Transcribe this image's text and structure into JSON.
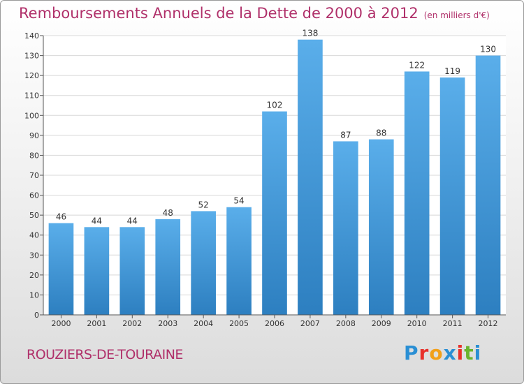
{
  "header": {
    "title": "Remboursements Annuels de la Dette de 2000 à 2012",
    "subtitle": "(en milliers d'€)"
  },
  "footer": {
    "commune": "ROUZIERS-DE-TOURAINE",
    "logo": {
      "letters": [
        "P",
        "r",
        "o",
        "x",
        "i",
        "t",
        "i"
      ],
      "colors": [
        "#2a8fd4",
        "#e8312b",
        "#f2a01a",
        "#2a8fd4",
        "#e8312b",
        "#6ab42d",
        "#2a8fd4"
      ]
    }
  },
  "chart_data": {
    "type": "bar",
    "categories": [
      "2000",
      "2001",
      "2002",
      "2003",
      "2004",
      "2005",
      "2006",
      "2007",
      "2008",
      "2009",
      "2010",
      "2011",
      "2012"
    ],
    "values": [
      46,
      44,
      44,
      48,
      52,
      54,
      102,
      138,
      87,
      88,
      122,
      119,
      130
    ],
    "value_labels": [
      "46",
      "44",
      "44",
      "48",
      "52",
      "54",
      "102",
      "138",
      "87",
      "88",
      "122",
      "119",
      "130"
    ],
    "title": "Remboursements Annuels de la Dette de 2000 à 2012",
    "ylim": [
      0,
      140
    ],
    "yticks": [
      0,
      10,
      20,
      30,
      40,
      50,
      60,
      70,
      80,
      90,
      100,
      110,
      120,
      130,
      140
    ],
    "ytick_labels": [
      "0",
      "10",
      "20",
      "30",
      "40",
      "50",
      "60",
      "70",
      "80",
      "90",
      "100",
      "110",
      "120",
      "130",
      "140"
    ],
    "grid": true,
    "bar_color_top": "#5aaeea",
    "bar_color_bottom": "#2d7fc0"
  }
}
